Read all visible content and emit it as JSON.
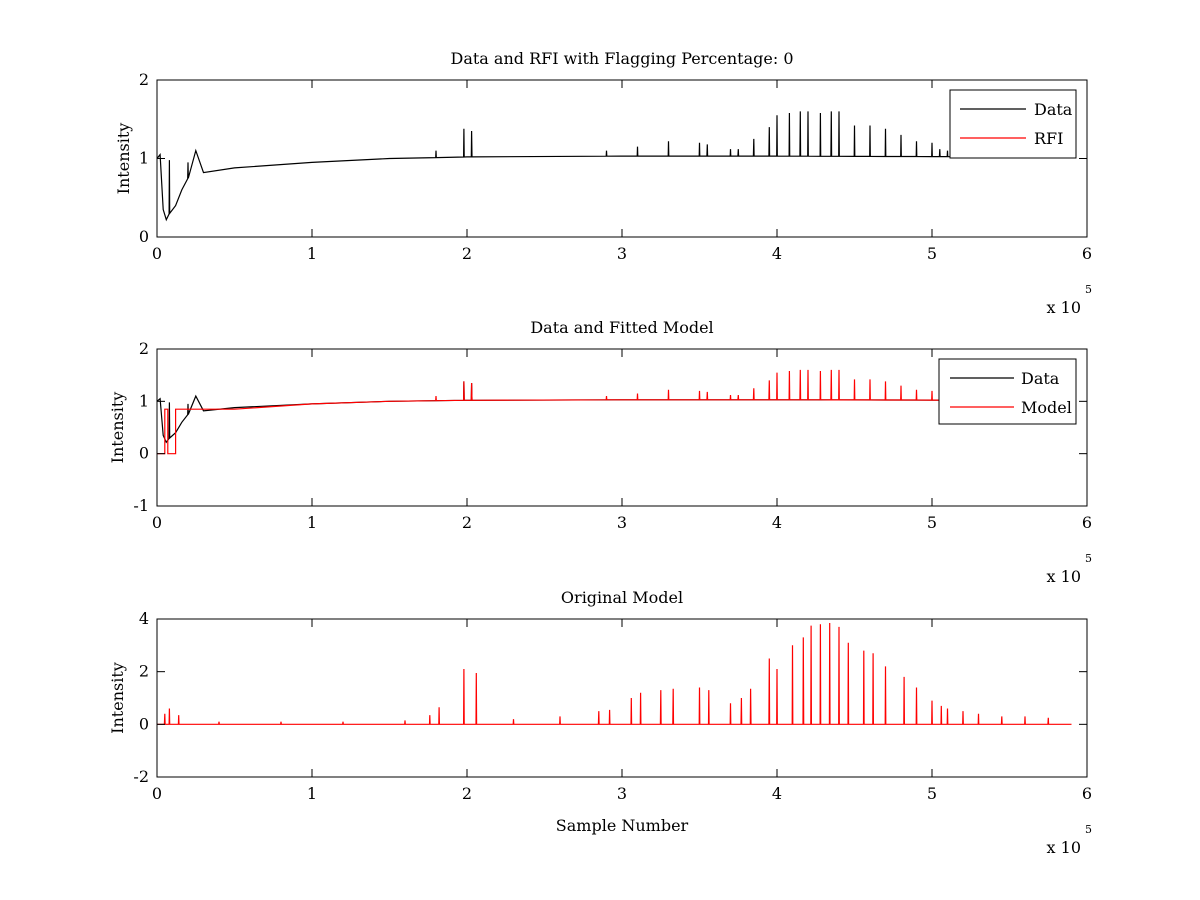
{
  "chart_data": [
    {
      "type": "line",
      "title": "Data and RFI with Flagging Percentage: 0",
      "xlabel": "",
      "ylabel": "Intensity",
      "xlim": [
        0,
        600000
      ],
      "ylim": [
        0,
        2
      ],
      "xticks": [
        0,
        1,
        2,
        3,
        4,
        5,
        6
      ],
      "yticks": [
        0,
        1,
        2
      ],
      "x_multiplier": {
        "base": "x 10",
        "exponent": "5"
      },
      "legend_position": "top-right",
      "grid": false,
      "series": [
        {
          "name": "Data",
          "color": "#000000",
          "x_end": 575000,
          "baseline": [
            [
              0,
              1.0
            ],
            [
              2000,
              1.05
            ],
            [
              4000,
              0.35
            ],
            [
              6000,
              0.22
            ],
            [
              8000,
              0.3
            ],
            [
              12000,
              0.4
            ],
            [
              16000,
              0.6
            ],
            [
              20000,
              0.75
            ],
            [
              25000,
              1.1
            ],
            [
              30000,
              0.82
            ],
            [
              50000,
              0.88
            ],
            [
              100000,
              0.95
            ],
            [
              150000,
              1.0
            ],
            [
              200000,
              1.02
            ],
            [
              300000,
              1.03
            ],
            [
              400000,
              1.03
            ],
            [
              575000,
              1.02
            ]
          ],
          "spikes": [
            [
              8000,
              0.98
            ],
            [
              20000,
              0.95
            ],
            [
              180000,
              1.1
            ],
            [
              198000,
              1.38
            ],
            [
              203000,
              1.35
            ],
            [
              290000,
              1.1
            ],
            [
              310000,
              1.15
            ],
            [
              330000,
              1.22
            ],
            [
              350000,
              1.2
            ],
            [
              355000,
              1.18
            ],
            [
              370000,
              1.12
            ],
            [
              375000,
              1.12
            ],
            [
              385000,
              1.25
            ],
            [
              395000,
              1.4
            ],
            [
              400000,
              1.55
            ],
            [
              408000,
              1.58
            ],
            [
              415000,
              1.6
            ],
            [
              420000,
              1.6
            ],
            [
              428000,
              1.58
            ],
            [
              435000,
              1.6
            ],
            [
              440000,
              1.6
            ],
            [
              450000,
              1.42
            ],
            [
              460000,
              1.42
            ],
            [
              470000,
              1.38
            ],
            [
              480000,
              1.3
            ],
            [
              490000,
              1.22
            ],
            [
              500000,
              1.2
            ],
            [
              505000,
              1.12
            ],
            [
              510000,
              1.1
            ],
            [
              520000,
              1.06
            ]
          ]
        },
        {
          "name": "RFI",
          "color": "#ff0000",
          "x_end": 575000,
          "baseline": [],
          "spikes": []
        }
      ]
    },
    {
      "type": "line",
      "title": "Data and Fitted Model",
      "xlabel": "",
      "ylabel": "Intensity",
      "xlim": [
        0,
        600000
      ],
      "ylim": [
        -1,
        2
      ],
      "xticks": [
        0,
        1,
        2,
        3,
        4,
        5,
        6
      ],
      "yticks": [
        -1,
        0,
        1,
        2
      ],
      "x_multiplier": {
        "base": "x 10",
        "exponent": "5"
      },
      "legend_position": "top-right",
      "grid": false,
      "series": [
        {
          "name": "Data",
          "color": "#000000",
          "x_end": 575000,
          "baseline": [
            [
              0,
              1.0
            ],
            [
              2000,
              1.05
            ],
            [
              4000,
              0.35
            ],
            [
              6000,
              0.22
            ],
            [
              8000,
              0.3
            ],
            [
              12000,
              0.4
            ],
            [
              16000,
              0.6
            ],
            [
              20000,
              0.75
            ],
            [
              25000,
              1.1
            ],
            [
              30000,
              0.82
            ],
            [
              50000,
              0.88
            ],
            [
              100000,
              0.95
            ],
            [
              150000,
              1.0
            ],
            [
              200000,
              1.02
            ],
            [
              300000,
              1.03
            ],
            [
              400000,
              1.03
            ],
            [
              575000,
              1.02
            ]
          ],
          "spikes": [
            [
              8000,
              0.98
            ],
            [
              20000,
              0.95
            ],
            [
              198000,
              1.38
            ],
            [
              203000,
              1.35
            ]
          ]
        },
        {
          "name": "Model",
          "color": "#ff0000",
          "x_end": 575000,
          "baseline": [
            [
              0,
              0.0
            ],
            [
              5000,
              0.0
            ],
            [
              5000,
              0.85
            ],
            [
              7000,
              0.85
            ],
            [
              7000,
              0.0
            ],
            [
              12000,
              0.0
            ],
            [
              12000,
              0.85
            ],
            [
              50000,
              0.85
            ],
            [
              100000,
              0.95
            ],
            [
              150000,
              1.0
            ],
            [
              200000,
              1.02
            ],
            [
              300000,
              1.03
            ],
            [
              400000,
              1.03
            ],
            [
              575000,
              1.02
            ]
          ],
          "spikes": [
            [
              180000,
              1.1
            ],
            [
              198000,
              1.38
            ],
            [
              203000,
              1.35
            ],
            [
              290000,
              1.1
            ],
            [
              310000,
              1.15
            ],
            [
              330000,
              1.22
            ],
            [
              350000,
              1.2
            ],
            [
              355000,
              1.18
            ],
            [
              370000,
              1.12
            ],
            [
              375000,
              1.12
            ],
            [
              385000,
              1.25
            ],
            [
              395000,
              1.4
            ],
            [
              400000,
              1.55
            ],
            [
              408000,
              1.58
            ],
            [
              415000,
              1.6
            ],
            [
              420000,
              1.6
            ],
            [
              428000,
              1.58
            ],
            [
              435000,
              1.6
            ],
            [
              440000,
              1.6
            ],
            [
              450000,
              1.42
            ],
            [
              460000,
              1.42
            ],
            [
              470000,
              1.38
            ],
            [
              480000,
              1.3
            ],
            [
              490000,
              1.22
            ],
            [
              500000,
              1.2
            ],
            [
              505000,
              1.12
            ],
            [
              510000,
              1.1
            ],
            [
              520000,
              1.06
            ]
          ]
        }
      ]
    },
    {
      "type": "line",
      "title": "Original Model",
      "xlabel": "Sample Number",
      "ylabel": "Intensity",
      "xlim": [
        0,
        600000
      ],
      "ylim": [
        -2,
        4
      ],
      "xticks": [
        0,
        1,
        2,
        3,
        4,
        5,
        6
      ],
      "yticks": [
        -2,
        0,
        2,
        4
      ],
      "x_multiplier": {
        "base": "x 10",
        "exponent": "5"
      },
      "legend_position": "none",
      "grid": false,
      "series": [
        {
          "name": "",
          "color": "#ff0000",
          "x_end": 590000,
          "baseline": [
            [
              0,
              0.0
            ],
            [
              590000,
              0.0
            ]
          ],
          "spikes": [
            [
              5000,
              0.4
            ],
            [
              8000,
              0.6
            ],
            [
              14000,
              0.35
            ],
            [
              40000,
              0.1
            ],
            [
              80000,
              0.1
            ],
            [
              120000,
              0.1
            ],
            [
              160000,
              0.15
            ],
            [
              176000,
              0.35
            ],
            [
              182000,
              0.65
            ],
            [
              198000,
              2.1
            ],
            [
              206000,
              1.95
            ],
            [
              230000,
              0.2
            ],
            [
              260000,
              0.3
            ],
            [
              285000,
              0.5
            ],
            [
              292000,
              0.55
            ],
            [
              306000,
              1.0
            ],
            [
              312000,
              1.2
            ],
            [
              325000,
              1.3
            ],
            [
              333000,
              1.35
            ],
            [
              350000,
              1.4
            ],
            [
              356000,
              1.3
            ],
            [
              370000,
              0.8
            ],
            [
              377000,
              1.0
            ],
            [
              383000,
              1.35
            ],
            [
              395000,
              2.5
            ],
            [
              400000,
              2.1
            ],
            [
              410000,
              3.0
            ],
            [
              417000,
              3.3
            ],
            [
              422000,
              3.75
            ],
            [
              428000,
              3.8
            ],
            [
              434000,
              3.85
            ],
            [
              440000,
              3.7
            ],
            [
              446000,
              3.1
            ],
            [
              456000,
              2.8
            ],
            [
              462000,
              2.7
            ],
            [
              470000,
              2.2
            ],
            [
              482000,
              1.8
            ],
            [
              490000,
              1.4
            ],
            [
              500000,
              0.9
            ],
            [
              506000,
              0.7
            ],
            [
              510000,
              0.6
            ],
            [
              520000,
              0.5
            ],
            [
              530000,
              0.4
            ],
            [
              545000,
              0.3
            ],
            [
              560000,
              0.3
            ],
            [
              575000,
              0.25
            ]
          ]
        }
      ]
    }
  ]
}
